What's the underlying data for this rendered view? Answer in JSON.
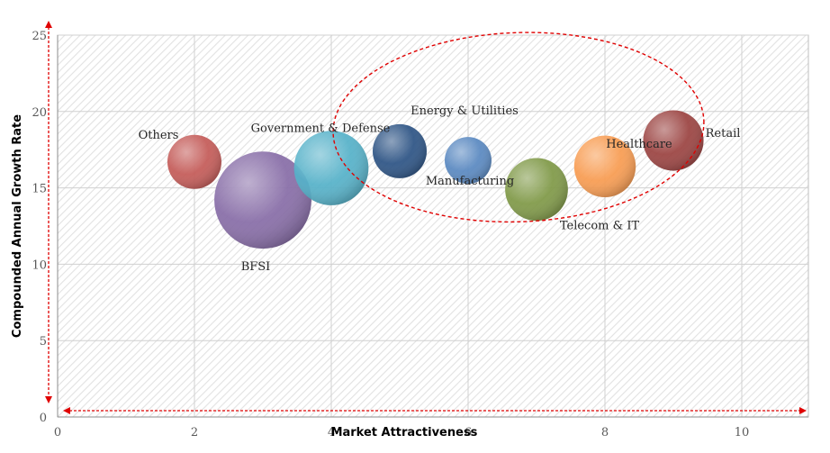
{
  "chart_data": {
    "type": "scatter",
    "subtype": "bubble",
    "xlabel": "Market Attractiveness",
    "ylabel": "Compounded Annual Growth Rate",
    "xlim": [
      0,
      11
    ],
    "ylim": [
      0,
      25
    ],
    "x_ticks": [
      "0",
      "2",
      "4",
      "6",
      "8",
      "10"
    ],
    "y_ticks": [
      "0",
      "5",
      "10",
      "15",
      "20",
      "25"
    ],
    "grid": true,
    "legend": "none",
    "series": [
      {
        "label": "Others",
        "x": 2,
        "y": 16.7,
        "size": 1.0,
        "color": "#c0504d"
      },
      {
        "label": "BFSI",
        "x": 3,
        "y": 14.2,
        "size": 2.4,
        "color": "#8064a2"
      },
      {
        "label": "Government & Defense",
        "x": 4,
        "y": 16.3,
        "size": 1.9,
        "color": "#4bacc6"
      },
      {
        "label": "Energy & Utilities",
        "x": 5,
        "y": 17.4,
        "size": 1.0,
        "color": "#1f497d"
      },
      {
        "label": "Manufacturing",
        "x": 6,
        "y": 16.8,
        "size": 0.75,
        "color": "#4f81bd"
      },
      {
        "label": "Telecom & IT",
        "x": 7,
        "y": 14.9,
        "size": 1.35,
        "color": "#77933c"
      },
      {
        "label": "Healthcare",
        "x": 8,
        "y": 16.4,
        "size": 1.3,
        "color": "#f79646"
      },
      {
        "label": "Retail",
        "x": 9,
        "y": 18.1,
        "size": 1.25,
        "color": "#953735"
      }
    ],
    "annotations": {
      "highlight_ellipse": {
        "center_x": 7.0,
        "center_y": 18.5,
        "color": "#e00000"
      },
      "arrow_color": "#e00000"
    }
  }
}
